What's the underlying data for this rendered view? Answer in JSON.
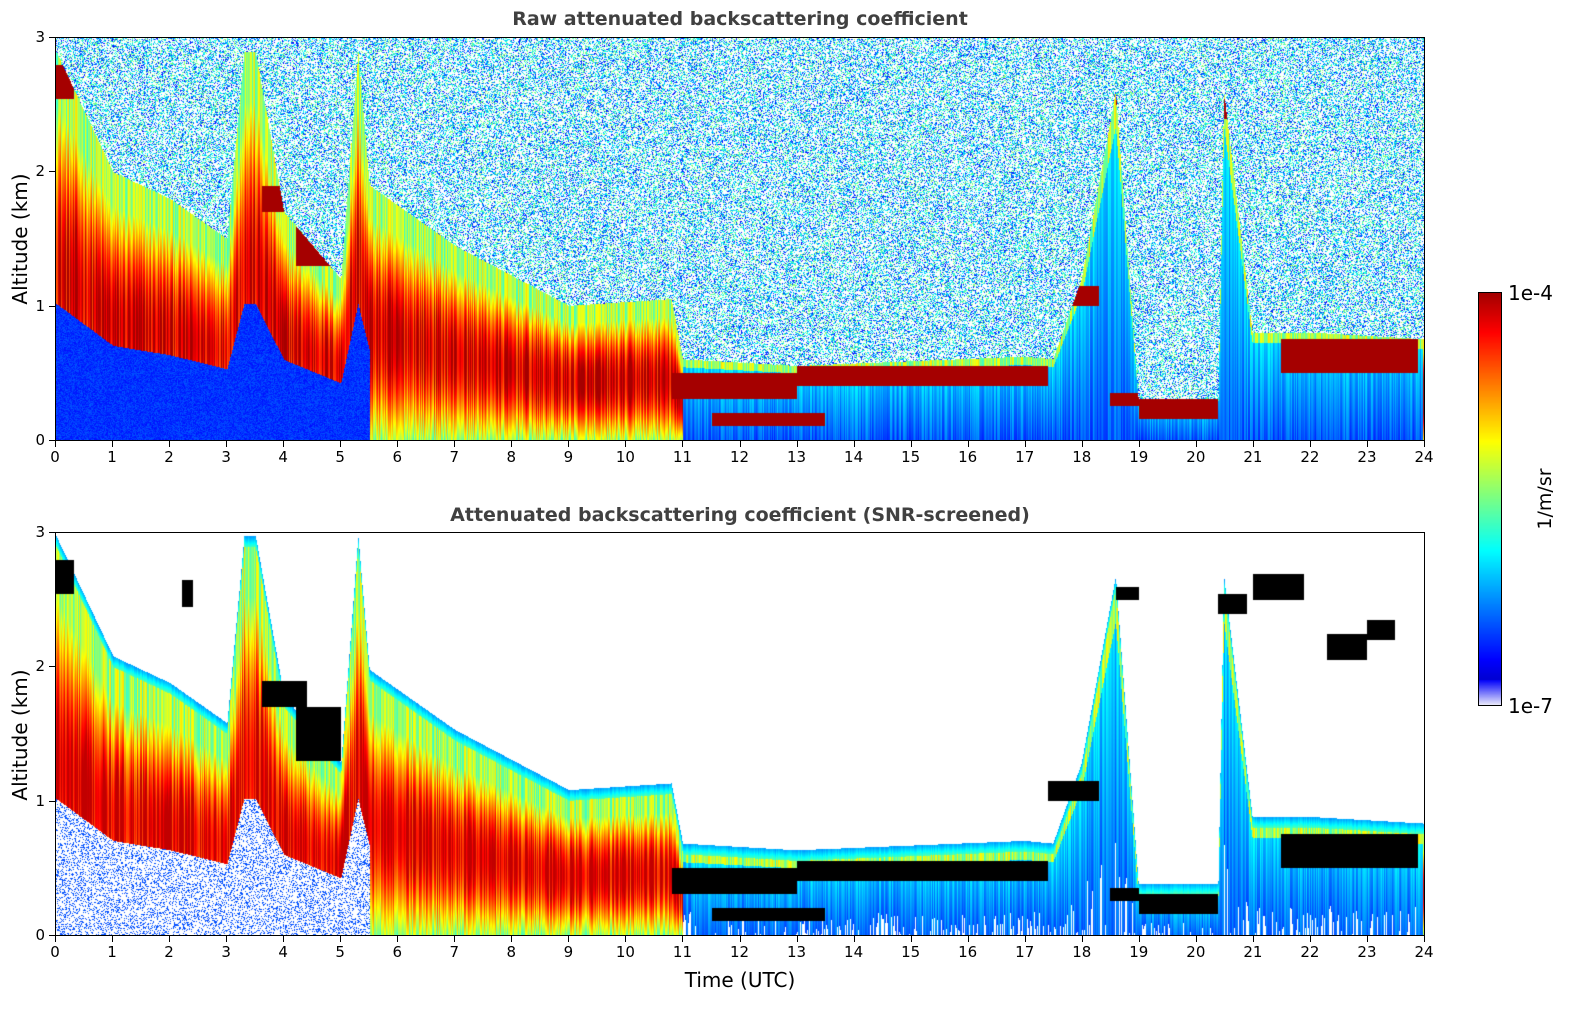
{
  "chart_data": [
    {
      "type": "heatmap",
      "title": "Raw attenuated backscattering coefficient",
      "xlabel": "",
      "ylabel": "Altitude (km)",
      "xlim": [
        0,
        24
      ],
      "ylim": [
        0,
        3
      ],
      "xticks": [
        "0",
        "1",
        "2",
        "3",
        "4",
        "5",
        "6",
        "7",
        "8",
        "9",
        "10",
        "11",
        "12",
        "13",
        "14",
        "15",
        "16",
        "17",
        "18",
        "19",
        "20",
        "21",
        "22",
        "23",
        "24"
      ],
      "yticks": [
        "0",
        "1",
        "2",
        "3"
      ]
    },
    {
      "type": "heatmap",
      "title": "Attenuated backscattering coefficient (SNR-screened)",
      "xlabel": "Time (UTC)",
      "ylabel": "Altitude (km)",
      "xlim": [
        0,
        24
      ],
      "ylim": [
        0,
        3
      ],
      "xticks": [
        "0",
        "1",
        "2",
        "3",
        "4",
        "5",
        "6",
        "7",
        "8",
        "9",
        "10",
        "11",
        "12",
        "13",
        "14",
        "15",
        "16",
        "17",
        "18",
        "19",
        "20",
        "21",
        "22",
        "23",
        "24"
      ],
      "yticks": [
        "0",
        "1",
        "2",
        "3"
      ]
    }
  ],
  "colorbar": {
    "max_label": "1e-4",
    "min_label": "1e-7",
    "unit": "1/m/sr",
    "colormap": "jet",
    "scale": "log"
  }
}
